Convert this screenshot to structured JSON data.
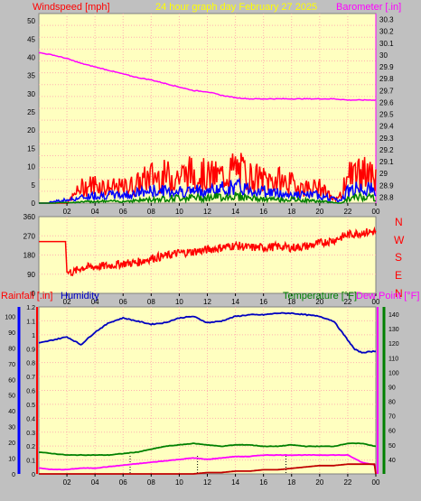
{
  "header": {
    "windspeed_label": "Windspeed [mph]",
    "title": "24 hour graph day   February 27 2025",
    "barometer_label": "Barometer [.in]"
  },
  "direction_labels": [
    "N",
    "W",
    "S",
    "E",
    "N"
  ],
  "bottom_labels": {
    "rainfall": "Rainfall [.in]",
    "humidity": "Humidity",
    "temperature": "Temperature [°F]",
    "dewpoint": "Dew Point [°F]"
  },
  "colors": {
    "plot_bg": "#ffffc0",
    "grid": "#ffb0b0",
    "wind": "#ff0000",
    "gust_blue": "#0000ff",
    "gust_green": "#008000",
    "barometer": "#ff00ff",
    "direction": "#ff0000",
    "humidity": "#0000c0",
    "temperature": "#008000",
    "dewpoint": "#ff00ff",
    "rainfall": "#c00000",
    "title_text": "#ffff00"
  },
  "x_ticks": [
    "02",
    "04",
    "06",
    "08",
    "10",
    "12",
    "14",
    "16",
    "18",
    "20",
    "22",
    "00"
  ],
  "chart_data": [
    {
      "type": "line",
      "name": "wind_barometer",
      "x_hours_range": [
        0,
        24
      ],
      "left_axis": {
        "label": "Windspeed [mph]",
        "ticks": [
          "0",
          "5",
          "10",
          "15",
          "20",
          "25",
          "30",
          "35",
          "40",
          "45",
          "50"
        ],
        "ylim": [
          0,
          50
        ]
      },
      "right_axis": {
        "label": "Barometer [.in]",
        "ticks": [
          "28.8",
          "28.9",
          "29",
          "29.1",
          "29.2",
          "29.3",
          "29.4",
          "29.5",
          "29.6",
          "29.7",
          "29.8",
          "29.9",
          "30",
          "30.1",
          "30.2",
          "30.3"
        ],
        "ylim": [
          28.75,
          30.35
        ]
      },
      "series": [
        {
          "name": "Barometer [.in]",
          "axis": "right",
          "x": [
            0,
            1,
            2,
            3,
            4,
            5,
            6,
            7,
            8,
            9,
            10,
            11,
            12,
            13,
            14,
            15,
            16,
            17,
            18,
            19,
            20,
            21,
            22,
            23,
            24
          ],
          "y": [
            30.02,
            30.0,
            29.97,
            29.93,
            29.9,
            29.87,
            29.84,
            29.81,
            29.79,
            29.76,
            29.73,
            29.7,
            29.69,
            29.66,
            29.64,
            29.63,
            29.63,
            29.63,
            29.63,
            29.63,
            29.63,
            29.63,
            29.62,
            29.62,
            29.62
          ]
        },
        {
          "name": "Windspeed [mph]",
          "axis": "left",
          "x": [
            0,
            2,
            2.5,
            3,
            4,
            5,
            6,
            7,
            8,
            9,
            10,
            11,
            12,
            13,
            14,
            15,
            16,
            17,
            18,
            19,
            20,
            21,
            21.5,
            22,
            23,
            24
          ],
          "y": [
            0,
            0,
            2,
            4,
            5,
            4,
            4,
            5,
            7,
            7,
            7,
            8,
            7,
            7,
            9,
            7,
            6,
            6,
            5,
            4,
            4,
            1,
            2,
            7,
            8,
            6
          ]
        },
        {
          "name": "Wind gust avg (blue)",
          "axis": "left",
          "x": [
            0,
            2.5,
            4,
            6,
            8,
            10,
            12,
            14,
            16,
            18,
            20,
            21.5,
            22,
            23,
            24
          ],
          "y": [
            0,
            1,
            2,
            2,
            3,
            3,
            3,
            4,
            3,
            2,
            2,
            0.5,
            3,
            4,
            3
          ]
        },
        {
          "name": "Wind min (green)",
          "axis": "left",
          "x": [
            0,
            2.5,
            4,
            6,
            8,
            10,
            12,
            14,
            16,
            18,
            20,
            21.5,
            22,
            23,
            24
          ],
          "y": [
            0,
            0.2,
            0.5,
            0.5,
            1,
            1.5,
            1.5,
            2,
            1,
            1,
            0.5,
            0,
            1,
            2,
            1.5
          ]
        }
      ]
    },
    {
      "type": "line",
      "name": "wind_direction",
      "x_hours_range": [
        0,
        24
      ],
      "left_axis": {
        "ticks": [
          "0",
          "90",
          "180",
          "270",
          "360"
        ],
        "ylim": [
          0,
          360
        ]
      },
      "right_axis": {
        "ticks": [
          "N",
          "W",
          "S",
          "E",
          "N"
        ]
      },
      "series": [
        {
          "name": "Wind direction (deg)",
          "x": [
            0,
            1.9,
            2.0,
            2.5,
            3,
            4,
            5,
            6,
            7,
            8,
            9,
            10,
            11,
            12,
            13,
            14,
            15,
            16,
            17,
            18,
            19,
            20,
            21,
            22,
            23,
            24
          ],
          "y": [
            243,
            243,
            100,
            100,
            120,
            125,
            130,
            140,
            145,
            165,
            175,
            190,
            195,
            205,
            215,
            225,
            215,
            215,
            220,
            215,
            220,
            235,
            250,
            275,
            285,
            290
          ]
        }
      ]
    },
    {
      "type": "line",
      "name": "rain_humidity_temperature",
      "x_hours_range": [
        0,
        24
      ],
      "left_axis": {
        "label": "Humidity",
        "ticks": [
          "0",
          "10",
          "20",
          "30",
          "40",
          "50",
          "60",
          "70",
          "80",
          "90",
          "100"
        ],
        "ylim": [
          0,
          100
        ]
      },
      "rain_axis": {
        "label": "Rainfall [.in]",
        "ticks": [
          "0",
          "0.1",
          "0.2",
          "0.3",
          "0.4",
          "0.5",
          "0.6",
          "0.7",
          "0.8",
          "0.9",
          "1",
          "1.1",
          "1.2"
        ],
        "ylim": [
          0,
          1.2
        ]
      },
      "right_axis": {
        "label": "Temperature [°F]",
        "ticks": [
          "40",
          "50",
          "60",
          "70",
          "80",
          "90",
          "100",
          "110",
          "120",
          "130",
          "140"
        ],
        "ylim": [
          30,
          145
        ]
      },
      "series": [
        {
          "name": "Humidity",
          "axis": "left",
          "x": [
            0,
            1,
            2,
            3,
            4,
            5,
            6,
            7,
            8,
            9,
            10,
            11,
            12,
            13,
            14,
            15,
            16,
            17,
            18,
            19,
            20,
            21,
            22,
            22.5,
            23,
            24
          ],
          "y": [
            83,
            85,
            87,
            82,
            90,
            96,
            99,
            97,
            95,
            96,
            99,
            100,
            96,
            97,
            100,
            101,
            101,
            102,
            102,
            101,
            100,
            97,
            85,
            79,
            77,
            78
          ]
        },
        {
          "name": "Temperature [°F]",
          "axis": "right",
          "x": [
            0,
            1,
            2,
            3,
            4,
            5,
            6,
            7,
            8,
            9,
            10,
            11,
            12,
            13,
            14,
            15,
            16,
            17,
            18,
            19,
            20,
            21,
            22,
            23,
            24
          ],
          "y": [
            45,
            44,
            43,
            43,
            43,
            43,
            44,
            45,
            47,
            49,
            50,
            51,
            50,
            49,
            50,
            50,
            49,
            49,
            50,
            49,
            49,
            49,
            51,
            51,
            49
          ]
        },
        {
          "name": "Dew Point [°F]",
          "axis": "right",
          "x": [
            0,
            1,
            2,
            3,
            4,
            5,
            6,
            7,
            8,
            9,
            10,
            11,
            12,
            13,
            14,
            15,
            16,
            17,
            18,
            19,
            20,
            21,
            22,
            23,
            24
          ],
          "y": [
            34,
            33,
            33,
            34,
            34,
            35,
            36,
            37,
            38,
            39,
            40,
            41,
            40,
            41,
            42,
            42,
            43,
            43,
            43,
            43,
            43,
            43,
            43,
            38,
            36
          ]
        },
        {
          "name": "Rainfall [.in]",
          "axis": "rain",
          "x": [
            0,
            3,
            4,
            5,
            6,
            7,
            8,
            9,
            10,
            11,
            12,
            13,
            14,
            15,
            16,
            17,
            18,
            19,
            20,
            21,
            22,
            23,
            23.9,
            24
          ],
          "y": [
            0,
            0,
            0,
            0,
            0,
            0,
            0,
            0,
            0,
            0,
            0.01,
            0.01,
            0.02,
            0.02,
            0.03,
            0.03,
            0.04,
            0.05,
            0.06,
            0.06,
            0.07,
            0.07,
            0.07,
            0
          ]
        }
      ],
      "event_markers_hours": [
        6.5,
        11.3,
        17.6
      ]
    }
  ]
}
